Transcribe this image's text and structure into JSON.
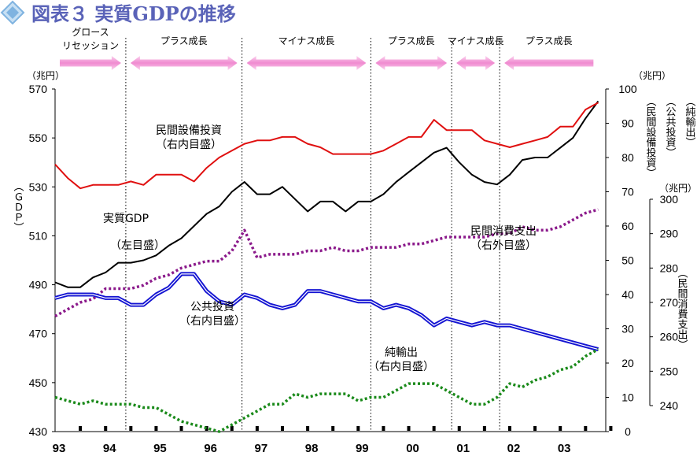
{
  "title": "図表３ 実質GDPの推移",
  "chart_data": {
    "type": "line",
    "x_labels": [
      "93",
      "94",
      "95",
      "96",
      "97",
      "98",
      "99",
      "00",
      "01",
      "02",
      "03"
    ],
    "phases": [
      {
        "label": "グロース",
        "label2": "リセッション",
        "arrow": "right",
        "start": 1993.0,
        "end": 1994.4
      },
      {
        "label": "プラス成長",
        "arrow": "both",
        "start": 1994.4,
        "end": 1996.7
      },
      {
        "label": "マイナス成長",
        "arrow": "both",
        "start": 1996.7,
        "end": 1999.25
      },
      {
        "label": "プラス成長",
        "arrow": "both",
        "start": 1999.25,
        "end": 2000.85
      },
      {
        "label": "マイナス成長",
        "arrow": "both",
        "start": 2000.85,
        "end": 2001.8
      },
      {
        "label": "プラス成長",
        "arrow": "left",
        "start": 2001.8,
        "end": 2003.75
      }
    ],
    "phase_dividers": [
      1994.4,
      1996.7,
      1999.25,
      2000.85,
      2001.8
    ],
    "axes": {
      "left": {
        "unit": "（兆円）",
        "title": "（ＧＤＰ）",
        "ylim": [
          430,
          570
        ],
        "ticks": [
          430,
          450,
          470,
          490,
          510,
          530,
          550,
          570
        ]
      },
      "right_inner": {
        "unit": "（兆円）",
        "ylim": [
          0,
          100
        ],
        "ticks": [
          0,
          10,
          20,
          30,
          40,
          50,
          60,
          70,
          80,
          90,
          100
        ],
        "titles": [
          "（民間設備投資）",
          "（公共投資）",
          "（純輸出）"
        ]
      },
      "right_outer": {
        "unit": "（兆円）",
        "ylim": [
          240,
          300
        ],
        "ticks": [
          240,
          250,
          260,
          270,
          280,
          290,
          300
        ],
        "title": "（民間消費支出）"
      }
    },
    "series": [
      {
        "name": "実質GDP",
        "axis": "left",
        "color": "#000000",
        "style": "solid",
        "x": [
          1993.0,
          1993.25,
          1993.5,
          1993.75,
          1994.0,
          1994.25,
          1994.5,
          1994.75,
          1995.0,
          1995.25,
          1995.5,
          1995.75,
          1996.0,
          1996.25,
          1996.5,
          1996.75,
          1997.0,
          1997.25,
          1997.5,
          1997.75,
          1998.0,
          1998.25,
          1998.5,
          1998.75,
          1999.0,
          1999.25,
          1999.5,
          1999.75,
          2000.0,
          2000.25,
          2000.5,
          2000.75,
          2001.0,
          2001.25,
          2001.5,
          2001.75,
          2002.0,
          2002.25,
          2002.5,
          2002.75,
          2003.0,
          2003.25,
          2003.5,
          2003.75
        ],
        "values": [
          491,
          489,
          489,
          493,
          495,
          499,
          499,
          500,
          502,
          506,
          509,
          514,
          519,
          522,
          528,
          532,
          527,
          527,
          530,
          525,
          520,
          524,
          524,
          520,
          524,
          524,
          527,
          532,
          536,
          540,
          544,
          546,
          540,
          535,
          532,
          531,
          535,
          541,
          542,
          542,
          546,
          550,
          558,
          565
        ]
      },
      {
        "name": "民間設備投資",
        "axis": "right_inner",
        "color": "#e01010",
        "style": "solid",
        "x": [
          1993.0,
          1993.25,
          1993.5,
          1993.75,
          1994.0,
          1994.25,
          1994.5,
          1994.75,
          1995.0,
          1995.25,
          1995.5,
          1995.75,
          1996.0,
          1996.25,
          1996.5,
          1996.75,
          1997.0,
          1997.25,
          1997.5,
          1997.75,
          1998.0,
          1998.25,
          1998.5,
          1998.75,
          1999.0,
          1999.25,
          1999.5,
          1999.75,
          2000.0,
          2000.25,
          2000.5,
          2000.75,
          2001.0,
          2001.25,
          2001.5,
          2001.75,
          2002.0,
          2002.25,
          2002.5,
          2002.75,
          2003.0,
          2003.25,
          2003.5,
          2003.75
        ],
        "values": [
          78,
          74,
          71,
          72,
          72,
          72,
          73,
          72,
          75,
          75,
          75,
          73,
          77,
          80,
          82,
          84,
          85,
          85,
          86,
          86,
          84,
          83,
          81,
          81,
          81,
          81,
          82,
          84,
          86,
          86,
          91,
          88,
          88,
          88,
          85,
          84,
          83,
          84,
          85,
          86,
          89,
          89,
          94,
          96
        ]
      },
      {
        "name": "民間消費支出",
        "axis": "right_outer",
        "color": "#8b1a8b",
        "style": "dotted",
        "x": [
          1993.0,
          1993.25,
          1993.5,
          1993.75,
          1994.0,
          1994.25,
          1994.5,
          1994.75,
          1995.0,
          1995.25,
          1995.5,
          1995.75,
          1996.0,
          1996.25,
          1996.5,
          1996.75,
          1997.0,
          1997.25,
          1997.5,
          1997.75,
          1998.0,
          1998.25,
          1998.5,
          1998.75,
          1999.0,
          1999.25,
          1999.5,
          1999.75,
          2000.0,
          2000.25,
          2000.5,
          2000.75,
          2001.0,
          2001.25,
          2001.5,
          2001.75,
          2002.0,
          2002.25,
          2002.5,
          2002.75,
          2003.0,
          2003.25,
          2003.5,
          2003.75
        ],
        "values": [
          266,
          268,
          270,
          271,
          274,
          274,
          274,
          275,
          277,
          278,
          280,
          281,
          282,
          282,
          285,
          291,
          283,
          284,
          284,
          284,
          285,
          285,
          286,
          285,
          285,
          286,
          286,
          286,
          287,
          287,
          288,
          289,
          289,
          289,
          289,
          290,
          290,
          292,
          291,
          291,
          292,
          294,
          296,
          297
        ]
      },
      {
        "name": "公共投資",
        "axis": "right_inner",
        "color": "#1414d2",
        "style": "solid",
        "x": [
          1993.0,
          1993.25,
          1993.5,
          1993.75,
          1994.0,
          1994.25,
          1994.5,
          1994.75,
          1995.0,
          1995.25,
          1995.5,
          1995.75,
          1996.0,
          1996.25,
          1996.5,
          1996.75,
          1997.0,
          1997.25,
          1997.5,
          1997.75,
          1998.0,
          1998.25,
          1998.5,
          1998.75,
          1999.0,
          1999.25,
          1999.5,
          1999.75,
          2000.0,
          2000.25,
          2000.5,
          2000.75,
          2001.0,
          2001.25,
          2001.5,
          2001.75,
          2002.0,
          2002.25,
          2002.5,
          2002.75,
          2003.0,
          2003.25,
          2003.5,
          2003.75
        ],
        "values": [
          39,
          40,
          40,
          40,
          39,
          39,
          37,
          37,
          40,
          42,
          46,
          46,
          41,
          38,
          37,
          40,
          39,
          37,
          36,
          37,
          41,
          41,
          40,
          39,
          38,
          38,
          36,
          37,
          36,
          34,
          31,
          33,
          32,
          31,
          32,
          31,
          31,
          30,
          29,
          28,
          27,
          26,
          25,
          24
        ]
      },
      {
        "name": "純輸出",
        "axis": "right_inner",
        "color": "#1a8a1a",
        "style": "dotted",
        "x": [
          1993.0,
          1993.25,
          1993.5,
          1993.75,
          1994.0,
          1994.25,
          1994.5,
          1994.75,
          1995.0,
          1995.25,
          1995.5,
          1995.75,
          1996.0,
          1996.25,
          1996.5,
          1996.75,
          1997.0,
          1997.25,
          1997.5,
          1997.75,
          1998.0,
          1998.25,
          1998.5,
          1998.75,
          1999.0,
          1999.25,
          1999.5,
          1999.75,
          2000.0,
          2000.25,
          2000.5,
          2000.75,
          2001.0,
          2001.25,
          2001.5,
          2001.75,
          2002.0,
          2002.25,
          2002.5,
          2002.75,
          2003.0,
          2003.25,
          2003.5,
          2003.75
        ],
        "values": [
          10,
          9,
          8,
          9,
          8,
          8,
          8,
          7,
          7,
          5,
          3,
          2,
          1,
          0,
          2,
          4,
          6,
          8,
          8,
          11,
          10,
          11,
          11,
          11,
          9,
          10,
          10,
          12,
          14,
          14,
          14,
          12,
          10,
          8,
          8,
          10,
          14,
          13,
          15,
          16,
          18,
          19,
          22,
          24
        ]
      }
    ],
    "annotations": [
      {
        "lines": [
          "民間設備投資",
          "（右内目盛）"
        ]
      },
      {
        "lines": [
          "実質GDP"
        ]
      },
      {
        "lines": [
          "（左目盛）"
        ]
      },
      {
        "lines": [
          "民間消費支出",
          "（右外目盛）"
        ]
      },
      {
        "lines": [
          "公共投資",
          "（右内目盛）"
        ]
      },
      {
        "lines": [
          "純輸出",
          "（右内目盛）"
        ]
      }
    ]
  },
  "colors": {
    "title": "#5a63b8",
    "diamond_a": "#7fb3e0",
    "diamond_b": "#c7e0f4",
    "arrow": "#f08ad0",
    "arrow_light": "#fce0f2"
  }
}
